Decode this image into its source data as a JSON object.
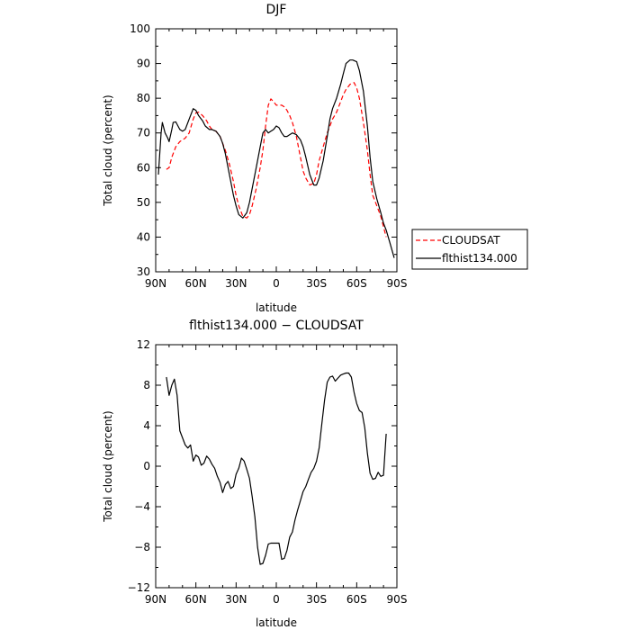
{
  "chart_data": [
    {
      "type": "line",
      "title": "DJF",
      "xlabel": "latitude",
      "ylabel": "Total cloud (percent)",
      "xlim": [
        90,
        -90
      ],
      "ylim": [
        30,
        100
      ],
      "x_ticks": [
        {
          "value": 90,
          "label": "90N"
        },
        {
          "value": 60,
          "label": "60N"
        },
        {
          "value": 30,
          "label": "30N"
        },
        {
          "value": 0,
          "label": "0"
        },
        {
          "value": -30,
          "label": "30S"
        },
        {
          "value": -60,
          "label": "60S"
        },
        {
          "value": -90,
          "label": "90S"
        }
      ],
      "y_ticks": [
        30,
        40,
        50,
        60,
        70,
        80,
        90,
        100
      ],
      "legend_position": "outside-right",
      "series": [
        {
          "name": "CLOUDSAT",
          "color": "#ff0000",
          "dash": "dashed",
          "x": [
            82,
            80,
            78,
            75,
            72,
            70,
            68,
            65,
            62,
            60,
            58,
            55,
            52,
            50,
            48,
            45,
            42,
            40,
            38,
            35,
            32,
            30,
            28,
            25,
            22,
            20,
            18,
            15,
            12,
            10,
            8,
            6,
            4,
            2,
            0,
            -2,
            -4,
            -6,
            -8,
            -10,
            -12,
            -15,
            -18,
            -20,
            -22,
            -25,
            -28,
            -30,
            -32,
            -35,
            -38,
            -40,
            -42,
            -45,
            -48,
            -50,
            -52,
            -55,
            -58,
            -60,
            -62,
            -65,
            -68,
            -70,
            -72,
            -75,
            -78,
            -80,
            -82
          ],
          "y": [
            59.5,
            60,
            63,
            66,
            67.5,
            68,
            68.5,
            70,
            74,
            75.8,
            76,
            75,
            73.5,
            72,
            71,
            70.5,
            69,
            67,
            65,
            61,
            56,
            52,
            49,
            46,
            45.5,
            46.5,
            49,
            54,
            60,
            65,
            72,
            78,
            79.8,
            79,
            78,
            78,
            78,
            77.5,
            76.5,
            75,
            73,
            69,
            63,
            59,
            57,
            55,
            55.5,
            58,
            62,
            66,
            70,
            72,
            74,
            76,
            79,
            81,
            82.5,
            84,
            84.5,
            83,
            80,
            73,
            65,
            58,
            52,
            49,
            46,
            43,
            40
          ]
        },
        {
          "name": "flthist134.000",
          "color": "#000000",
          "dash": "solid",
          "x": [
            88,
            86,
            85,
            83,
            81,
            80,
            78,
            77,
            75,
            72,
            70,
            68,
            65,
            62,
            60,
            58,
            55,
            53,
            50,
            48,
            45,
            42,
            40,
            38,
            35,
            32,
            30,
            28,
            25,
            22,
            20,
            18,
            15,
            12,
            10,
            8,
            6,
            4,
            2,
            0,
            -2,
            -4,
            -6,
            -8,
            -10,
            -12,
            -15,
            -18,
            -20,
            -22,
            -25,
            -28,
            -30,
            -32,
            -35,
            -38,
            -40,
            -42,
            -45,
            -48,
            -50,
            -52,
            -55,
            -57,
            -60,
            -62,
            -65,
            -68,
            -70,
            -72,
            -75,
            -78,
            -80,
            -82,
            -85,
            -88
          ],
          "y": [
            58,
            70,
            73,
            70,
            68.5,
            67.5,
            71,
            73,
            73.2,
            71,
            70.5,
            71,
            74,
            77,
            76.5,
            75,
            73.5,
            72,
            71,
            71,
            70.5,
            69,
            67,
            64,
            58,
            52,
            49,
            46.5,
            45.5,
            47,
            50,
            54,
            60,
            66,
            70,
            71,
            70,
            70.5,
            71,
            72,
            71.5,
            70,
            69,
            69,
            69.5,
            70,
            69.5,
            68,
            66,
            63,
            58,
            55,
            55,
            57,
            62,
            69,
            74,
            77,
            80,
            84,
            87,
            90,
            91,
            91,
            90.5,
            88,
            82,
            72,
            63,
            56,
            51,
            47,
            44,
            42,
            38,
            34
          ]
        }
      ]
    },
    {
      "type": "line",
      "title": "flthist134.000 − CLOUDSAT",
      "xlabel": "latitude",
      "ylabel": "Total cloud (percent)",
      "xlim": [
        90,
        -90
      ],
      "ylim": [
        -12,
        12
      ],
      "x_ticks": [
        {
          "value": 90,
          "label": "90N"
        },
        {
          "value": 60,
          "label": "60N"
        },
        {
          "value": 30,
          "label": "30N"
        },
        {
          "value": 0,
          "label": "0"
        },
        {
          "value": -30,
          "label": "30S"
        },
        {
          "value": -60,
          "label": "60S"
        },
        {
          "value": -90,
          "label": "90S"
        }
      ],
      "y_ticks": [
        {
          "value": -12,
          "label": "−12"
        },
        {
          "value": -8,
          "label": "−8"
        },
        {
          "value": -4,
          "label": "−4"
        },
        {
          "value": 0,
          "label": "0"
        },
        {
          "value": 4,
          "label": "4"
        },
        {
          "value": 8,
          "label": "8"
        },
        {
          "value": 12,
          "label": "12"
        }
      ],
      "series": [
        {
          "name": "",
          "color": "#000000",
          "dash": "solid",
          "x": [
            82,
            80,
            78,
            76,
            74,
            72,
            70,
            68,
            66,
            64,
            62,
            60,
            58,
            56,
            54,
            52,
            50,
            48,
            46,
            44,
            42,
            40,
            38,
            36,
            34,
            32,
            30,
            28,
            26,
            24,
            22,
            20,
            18,
            16,
            14,
            12,
            10,
            8,
            6,
            4,
            2,
            0,
            -2,
            -4,
            -6,
            -8,
            -10,
            -12,
            -14,
            -16,
            -18,
            -20,
            -22,
            -24,
            -26,
            -28,
            -30,
            -32,
            -34,
            -36,
            -38,
            -40,
            -42,
            -44,
            -46,
            -48,
            -50,
            -52,
            -54,
            -56,
            -58,
            -60,
            -62,
            -64,
            -66,
            -68,
            -70,
            -72,
            -74,
            -76,
            -78,
            -80,
            -82
          ],
          "y": [
            8.8,
            7,
            8,
            8.6,
            7,
            3.5,
            2.8,
            2.1,
            1.8,
            2.1,
            0.5,
            1.1,
            0.9,
            0.1,
            0.3,
            1,
            0.7,
            0.2,
            -0.2,
            -1,
            -1.6,
            -2.6,
            -1.8,
            -1.5,
            -2.2,
            -2,
            -0.8,
            -0.2,
            0.8,
            0.5,
            -0.3,
            -1.2,
            -3,
            -5,
            -8,
            -9.7,
            -9.6,
            -8.8,
            -7.7,
            -7.6,
            -7.6,
            -7.6,
            -7.6,
            -9.2,
            -9.1,
            -8.3,
            -7,
            -6.5,
            -5.3,
            -4.3,
            -3.4,
            -2.5,
            -2,
            -1.3,
            -0.6,
            -0.2,
            0.5,
            1.8,
            4.2,
            6.5,
            8.3,
            8.8,
            8.9,
            8.4,
            8.7,
            9,
            9.1,
            9.2,
            9.2,
            8.8,
            7.3,
            6.2,
            5.5,
            5.3,
            3.8,
            1.3,
            -0.7,
            -1.3,
            -1.2,
            -0.6,
            -1,
            -0.9,
            3.2
          ]
        }
      ]
    }
  ]
}
